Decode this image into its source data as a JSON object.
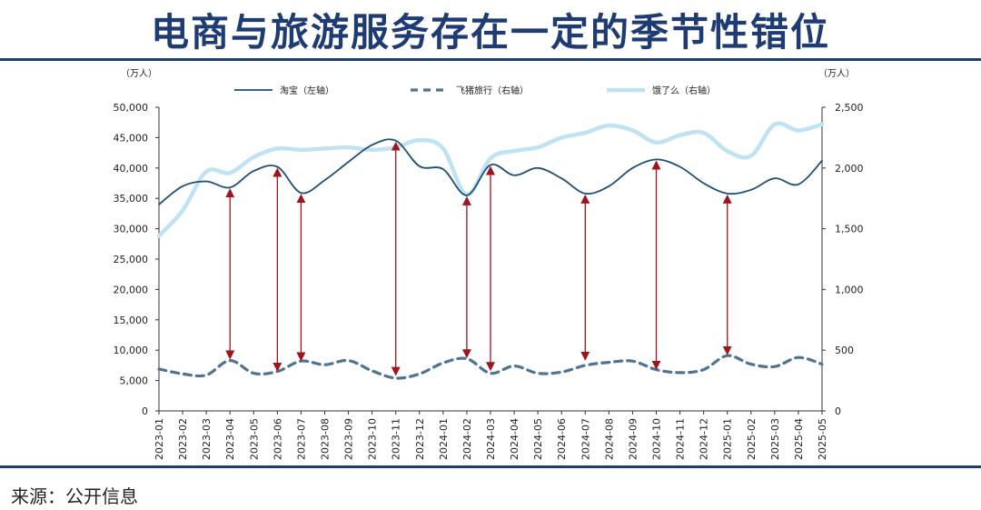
{
  "page": {
    "title": "电商与旅游服务存在一定的季节性错位",
    "source": "来源：公开信息"
  },
  "colors": {
    "title": "#1f3b73",
    "taobao": "#1f4e79",
    "feizhu": "#4f7394",
    "eleme": "#bfe3f2",
    "arrow": "#a0141e"
  },
  "chart_data": {
    "type": "line",
    "left_unit": "（万人）",
    "right_unit": "（万人）",
    "x": [
      "2023-01",
      "2023-02",
      "2023-03",
      "2023-04",
      "2023-05",
      "2023-06",
      "2023-07",
      "2023-08",
      "2023-09",
      "2023-10",
      "2023-11",
      "2023-12",
      "2024-01",
      "2024-02",
      "2024-03",
      "2024-04",
      "2024-05",
      "2024-06",
      "2024-07",
      "2024-08",
      "2024-09",
      "2024-10",
      "2024-11",
      "2024-12",
      "2025-01",
      "2025-02",
      "2025-03",
      "2025-04",
      "2025-05"
    ],
    "y_left": {
      "min": 0,
      "max": 50000,
      "ticks": [
        "0",
        "5,000",
        "10,000",
        "15,000",
        "20,000",
        "25,000",
        "30,000",
        "35,000",
        "40,000",
        "45,000",
        "50,000"
      ]
    },
    "y_right": {
      "min": 0,
      "max": 2500,
      "ticks": [
        "0",
        "500",
        "1,000",
        "1,500",
        "2,000",
        "2,500"
      ]
    },
    "series": [
      {
        "name": "淘宝（左轴）",
        "axis": "left",
        "style": "solid",
        "values": [
          34000,
          37000,
          37800,
          36800,
          39500,
          40200,
          35900,
          38000,
          41000,
          43800,
          44500,
          40300,
          39800,
          35500,
          40500,
          38800,
          40000,
          38300,
          35800,
          37000,
          40000,
          41400,
          40200,
          37500,
          35800,
          36400,
          38300,
          37300,
          41200
        ]
      },
      {
        "name": "飞猪旅行（右轴）",
        "axis": "right",
        "style": "dashed",
        "values": [
          345,
          305,
          295,
          415,
          310,
          325,
          410,
          380,
          415,
          330,
          270,
          305,
          395,
          430,
          310,
          370,
          310,
          320,
          375,
          400,
          410,
          340,
          315,
          340,
          455,
          385,
          365,
          440,
          385
        ]
      },
      {
        "name": "饿了么（右轴）",
        "axis": "right",
        "style": "thick",
        "values": [
          1440,
          1650,
          1970,
          1960,
          2090,
          2160,
          2150,
          2160,
          2170,
          2150,
          2170,
          2230,
          2160,
          1780,
          2080,
          2140,
          2170,
          2250,
          2290,
          2350,
          2310,
          2210,
          2270,
          2290,
          2140,
          2100,
          2360,
          2310,
          2360
        ]
      }
    ],
    "arrows": [
      {
        "x": "2023-04",
        "from_y_left": 36800,
        "to_y_left": 8300
      },
      {
        "x": "2023-06",
        "from_y_left": 40200,
        "to_y_left": 6300
      },
      {
        "x": "2023-07",
        "from_y_left": 35900,
        "to_y_left": 8000
      },
      {
        "x": "2023-11",
        "from_y_left": 44500,
        "to_y_left": 5600
      },
      {
        "x": "2024-02",
        "from_y_left": 35500,
        "to_y_left": 8500
      },
      {
        "x": "2024-03",
        "from_y_left": 40500,
        "to_y_left": 6400
      },
      {
        "x": "2024-07",
        "from_y_left": 35800,
        "to_y_left": 8100
      },
      {
        "x": "2024-10",
        "from_y_left": 41400,
        "to_y_left": 6600
      },
      {
        "x": "2025-01",
        "from_y_left": 35800,
        "to_y_left": 9000
      }
    ]
  }
}
